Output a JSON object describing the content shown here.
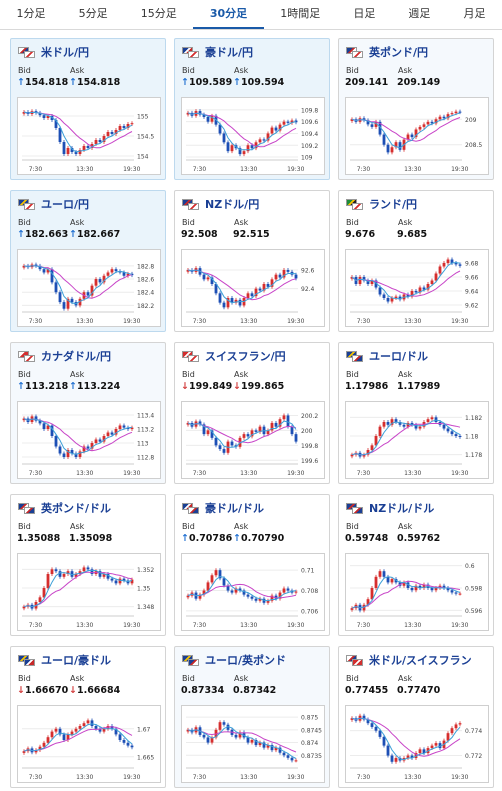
{
  "tabs": [
    "1分足",
    "5分足",
    "15分足",
    "30分足",
    "1時間足",
    "日足",
    "週足",
    "月足"
  ],
  "active_tab": 3,
  "labels": {
    "bid": "Bid",
    "ask": "Ask"
  },
  "x_ticks": [
    "7:30",
    "13:30",
    "19:30"
  ],
  "colors": {
    "up": "#d62e2e",
    "down": "#1d4fb5",
    "ma_short": "#3ca0d8",
    "ma_long": "#c845c8",
    "title": "#1a3f94"
  },
  "cards": [
    {
      "pair": "米ドル/円",
      "bid": "154.818",
      "ask": "154.818",
      "bid_dir": "up",
      "ask_dir": "up",
      "flags": [
        "us",
        "jp"
      ],
      "highlight": 1,
      "yticks": [
        "155",
        "154.5",
        "154"
      ],
      "ylim": [
        153.9,
        155.3
      ],
      "closes": [
        155.1,
        155.05,
        155.12,
        155.08,
        155.02,
        154.95,
        155.0,
        154.9,
        154.7,
        154.35,
        154.05,
        154.2,
        154.1,
        154.05,
        154.15,
        154.25,
        154.2,
        154.3,
        154.4,
        154.35,
        154.5,
        154.6,
        154.55,
        154.65,
        154.75,
        154.7,
        154.8,
        154.82
      ]
    },
    {
      "pair": "豪ドル/円",
      "bid": "109.589",
      "ask": "109.594",
      "bid_dir": "up",
      "ask_dir": "up",
      "flags": [
        "au",
        "jp"
      ],
      "highlight": 1,
      "yticks": [
        "109.8",
        "109.6",
        "109.4",
        "109.2",
        "109"
      ],
      "ylim": [
        108.95,
        109.9
      ],
      "closes": [
        109.75,
        109.7,
        109.78,
        109.72,
        109.68,
        109.6,
        109.7,
        109.55,
        109.4,
        109.25,
        109.1,
        109.2,
        109.15,
        109.05,
        109.1,
        109.2,
        109.15,
        109.25,
        109.3,
        109.28,
        109.4,
        109.5,
        109.45,
        109.55,
        109.6,
        109.58,
        109.62,
        109.59
      ]
    },
    {
      "pair": "英ポンド/円",
      "bid": "209.141",
      "ask": "209.149",
      "bid_dir": "none",
      "ask_dir": "none",
      "flags": [
        "gb",
        "jp"
      ],
      "highlight": 2,
      "yticks": [
        "209",
        "208.5"
      ],
      "ylim": [
        208.2,
        209.3
      ],
      "closes": [
        209.0,
        208.95,
        209.02,
        208.98,
        208.9,
        208.85,
        208.95,
        208.7,
        208.5,
        208.35,
        208.45,
        208.55,
        208.4,
        208.6,
        208.7,
        208.65,
        208.8,
        208.85,
        208.9,
        208.95,
        208.92,
        209.0,
        209.05,
        209.02,
        209.1,
        209.12,
        209.15,
        209.14
      ]
    },
    {
      "pair": "ユーロ/円",
      "bid": "182.663",
      "ask": "182.667",
      "bid_dir": "up",
      "ask_dir": "up",
      "flags": [
        "eu",
        "jp"
      ],
      "highlight": 1,
      "yticks": [
        "182.8",
        "182.6",
        "182.4",
        "182.2"
      ],
      "ylim": [
        182.1,
        182.95
      ],
      "closes": [
        182.8,
        182.78,
        182.82,
        182.8,
        182.75,
        182.7,
        182.75,
        182.55,
        182.4,
        182.25,
        182.15,
        182.3,
        182.25,
        182.2,
        182.3,
        182.4,
        182.35,
        182.5,
        182.6,
        182.55,
        182.65,
        182.7,
        182.75,
        182.72,
        182.7,
        182.65,
        182.68,
        182.66
      ]
    },
    {
      "pair": "NZドル/円",
      "bid": "92.508",
      "ask": "92.515",
      "bid_dir": "none",
      "ask_dir": "none",
      "flags": [
        "nz",
        "jp"
      ],
      "highlight": 0,
      "yticks": [
        "92.6",
        "92.4"
      ],
      "ylim": [
        92.15,
        92.75
      ],
      "closes": [
        92.6,
        92.58,
        92.62,
        92.55,
        92.5,
        92.52,
        92.45,
        92.35,
        92.25,
        92.2,
        92.3,
        92.25,
        92.28,
        92.22,
        92.3,
        92.35,
        92.32,
        92.4,
        92.38,
        92.45,
        92.42,
        92.5,
        92.55,
        92.52,
        92.6,
        92.58,
        92.55,
        92.51
      ]
    },
    {
      "pair": "ランド/円",
      "bid": "9.676",
      "ask": "9.685",
      "bid_dir": "none",
      "ask_dir": "none",
      "flags": [
        "za",
        "jp"
      ],
      "highlight": 0,
      "yticks": [
        "9.68",
        "9.66",
        "9.64",
        "9.62"
      ],
      "ylim": [
        9.61,
        9.69
      ],
      "closes": [
        9.66,
        9.65,
        9.66,
        9.655,
        9.65,
        9.655,
        9.645,
        9.635,
        9.63,
        9.625,
        9.63,
        9.632,
        9.628,
        9.635,
        9.632,
        9.64,
        9.638,
        9.645,
        9.642,
        9.65,
        9.655,
        9.665,
        9.675,
        9.68,
        9.685,
        9.68,
        9.678,
        9.676
      ]
    },
    {
      "pair": "カナダドル/円",
      "bid": "113.218",
      "ask": "113.224",
      "bid_dir": "up",
      "ask_dir": "up",
      "flags": [
        "ca",
        "jp"
      ],
      "highlight": 2,
      "yticks": [
        "113.4",
        "113.2",
        "113",
        "112.8"
      ],
      "ylim": [
        112.7,
        113.5
      ],
      "closes": [
        113.35,
        113.3,
        113.38,
        113.32,
        113.28,
        113.2,
        113.25,
        113.1,
        112.95,
        112.85,
        112.8,
        112.9,
        112.85,
        112.8,
        112.88,
        112.95,
        112.92,
        113.0,
        113.05,
        113.02,
        113.1,
        113.15,
        113.12,
        113.2,
        113.25,
        113.22,
        113.2,
        113.22
      ]
    },
    {
      "pair": "スイスフラン/円",
      "bid": "199.849",
      "ask": "199.865",
      "bid_dir": "down",
      "ask_dir": "down",
      "flags": [
        "ch",
        "jp"
      ],
      "highlight": 0,
      "yticks": [
        "200.2",
        "200",
        "199.8",
        "199.6"
      ],
      "ylim": [
        199.55,
        200.3
      ],
      "closes": [
        200.1,
        200.05,
        200.12,
        200.08,
        199.95,
        200.0,
        199.9,
        199.8,
        199.75,
        199.7,
        199.85,
        199.8,
        199.78,
        199.9,
        199.95,
        199.92,
        200.0,
        199.98,
        200.05,
        199.95,
        200.0,
        200.1,
        200.05,
        200.15,
        200.2,
        200.05,
        199.95,
        199.85
      ]
    },
    {
      "pair": "ユーロ/ドル",
      "bid": "1.17986",
      "ask": "1.17989",
      "bid_dir": "none",
      "ask_dir": "none",
      "flags": [
        "eu",
        "us"
      ],
      "highlight": 0,
      "yticks": [
        "1.182",
        "1.18",
        "1.178"
      ],
      "ylim": [
        1.177,
        1.183
      ],
      "closes": [
        1.178,
        1.1782,
        1.1778,
        1.178,
        1.1785,
        1.179,
        1.18,
        1.181,
        1.1815,
        1.1812,
        1.1818,
        1.1815,
        1.1812,
        1.181,
        1.1814,
        1.1812,
        1.1808,
        1.181,
        1.1815,
        1.1818,
        1.182,
        1.1815,
        1.1812,
        1.1808,
        1.1805,
        1.1802,
        1.18,
        1.1799
      ]
    },
    {
      "pair": "英ポンド/ドル",
      "bid": "1.35088",
      "ask": "1.35098",
      "bid_dir": "none",
      "ask_dir": "none",
      "flags": [
        "gb",
        "us"
      ],
      "highlight": 0,
      "yticks": [
        "1.352",
        "1.35",
        "1.348"
      ],
      "ylim": [
        1.347,
        1.353
      ],
      "closes": [
        1.348,
        1.3482,
        1.3478,
        1.3485,
        1.349,
        1.35,
        1.3515,
        1.352,
        1.3518,
        1.3512,
        1.3515,
        1.3518,
        1.3512,
        1.3515,
        1.3518,
        1.3522,
        1.352,
        1.3515,
        1.3518,
        1.3512,
        1.3515,
        1.351,
        1.3508,
        1.3505,
        1.351,
        1.3508,
        1.3505,
        1.3509
      ]
    },
    {
      "pair": "豪ドル/ドル",
      "bid": "0.70786",
      "ask": "0.70790",
      "bid_dir": "up",
      "ask_dir": "up",
      "flags": [
        "au",
        "us"
      ],
      "highlight": 0,
      "yticks": [
        "0.71",
        "0.708",
        "0.706"
      ],
      "ylim": [
        0.7055,
        0.711
      ],
      "closes": [
        0.7075,
        0.7078,
        0.7072,
        0.7076,
        0.708,
        0.7088,
        0.7095,
        0.71,
        0.7092,
        0.7085,
        0.708,
        0.7078,
        0.7082,
        0.708,
        0.7076,
        0.7074,
        0.7072,
        0.707,
        0.7072,
        0.7068,
        0.707,
        0.7075,
        0.7072,
        0.7078,
        0.7082,
        0.708,
        0.7078,
        0.7079
      ]
    },
    {
      "pair": "NZドル/ドル",
      "bid": "0.59748",
      "ask": "0.59762",
      "bid_dir": "none",
      "ask_dir": "none",
      "flags": [
        "nz",
        "us"
      ],
      "highlight": 0,
      "yticks": [
        "0.6",
        "0.598",
        "0.596"
      ],
      "ylim": [
        0.5955,
        0.6005
      ],
      "closes": [
        0.5962,
        0.5965,
        0.596,
        0.5965,
        0.597,
        0.598,
        0.599,
        0.5995,
        0.599,
        0.5985,
        0.5988,
        0.5985,
        0.5982,
        0.5985,
        0.598,
        0.5978,
        0.5982,
        0.598,
        0.5983,
        0.598,
        0.5978,
        0.598,
        0.5982,
        0.598,
        0.5978,
        0.5976,
        0.5975,
        0.5975
      ]
    },
    {
      "pair": "ユーロ/豪ドル",
      "bid": "1.66670",
      "ask": "1.66684",
      "bid_dir": "down",
      "ask_dir": "down",
      "flags": [
        "eu",
        "au"
      ],
      "highlight": 0,
      "yticks": [
        "1.67",
        "1.665"
      ],
      "ylim": [
        1.663,
        1.673
      ],
      "closes": [
        1.666,
        1.6665,
        1.6658,
        1.6662,
        1.6668,
        1.6675,
        1.6685,
        1.6695,
        1.67,
        1.669,
        1.668,
        1.669,
        1.6695,
        1.67,
        1.6705,
        1.671,
        1.6715,
        1.6705,
        1.67,
        1.6695,
        1.67,
        1.6705,
        1.67,
        1.669,
        1.668,
        1.6675,
        1.667,
        1.6667
      ]
    },
    {
      "pair": "ユーロ/英ポンド",
      "bid": "0.87334",
      "ask": "0.87342",
      "bid_dir": "none",
      "ask_dir": "none",
      "flags": [
        "eu",
        "gb"
      ],
      "highlight": 2,
      "yticks": [
        "0.875",
        "0.8745",
        "0.874",
        "0.8735"
      ],
      "ylim": [
        0.873,
        0.8752
      ],
      "closes": [
        0.8745,
        0.8744,
        0.8746,
        0.8743,
        0.8742,
        0.874,
        0.8742,
        0.8745,
        0.8748,
        0.8747,
        0.8745,
        0.8743,
        0.8742,
        0.8744,
        0.8742,
        0.874,
        0.8741,
        0.8739,
        0.874,
        0.8738,
        0.8739,
        0.8737,
        0.8738,
        0.8736,
        0.8735,
        0.8734,
        0.8733,
        0.8733
      ]
    },
    {
      "pair": "米ドル/スイスフラン",
      "bid": "0.77455",
      "ask": "0.77470",
      "bid_dir": "none",
      "ask_dir": "none",
      "flags": [
        "us",
        "ch"
      ],
      "highlight": 0,
      "yticks": [
        "0.774",
        "0.772"
      ],
      "ylim": [
        0.771,
        0.7755
      ],
      "closes": [
        0.775,
        0.7748,
        0.7752,
        0.7749,
        0.7746,
        0.7743,
        0.774,
        0.7735,
        0.7728,
        0.772,
        0.7715,
        0.7718,
        0.7716,
        0.7718,
        0.772,
        0.7718,
        0.7722,
        0.7725,
        0.7722,
        0.7726,
        0.7728,
        0.773,
        0.7726,
        0.7732,
        0.7738,
        0.7742,
        0.7745,
        0.7746
      ]
    }
  ]
}
